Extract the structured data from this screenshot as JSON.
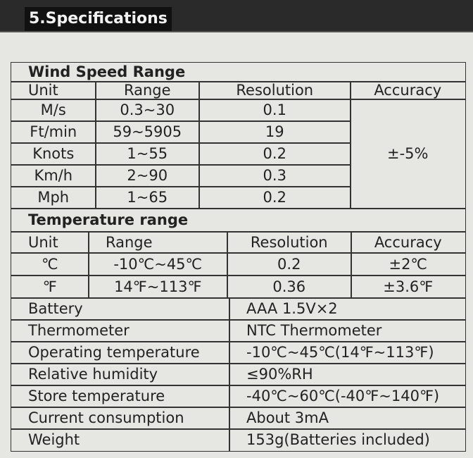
{
  "header": {
    "title": "5.Specifications"
  },
  "wind": {
    "title": "Wind Speed Range",
    "columns": [
      "Unit",
      "Range",
      "Resolution",
      "Accuracy"
    ],
    "rows": [
      [
        "M/s",
        "0.3~30",
        "0.1"
      ],
      [
        "Ft/min",
        "59~5905",
        "19"
      ],
      [
        "Knots",
        "1~55",
        "0.2"
      ],
      [
        "Km/h",
        "2~90",
        "0.3"
      ],
      [
        "Mph",
        "1~65",
        "0.2"
      ]
    ],
    "accuracy": "±-5%"
  },
  "temperature": {
    "title": "Temperature range",
    "columns": [
      "Unit",
      "Range",
      "Resolution",
      "Accuracy"
    ],
    "rows": [
      [
        "℃",
        "-10℃~45℃",
        "0.2",
        "±2℃"
      ],
      [
        "℉",
        "14℉~113℉",
        "0.36",
        "±3.6℉"
      ]
    ]
  },
  "general": {
    "rows": [
      [
        "Battery",
        "AAA  1.5V×2"
      ],
      [
        "Thermometer",
        "NTC Thermometer"
      ],
      [
        "Operating temperature",
        "-10℃~45℃(14℉~113℉)"
      ],
      [
        "Relative humidity",
        "≤90%RH"
      ],
      [
        "Store temperature",
        "-40℃~60℃(-40℉~140℉)"
      ],
      [
        "Current consumption",
        "About 3mA"
      ],
      [
        "Weight",
        "153g(Batteries included)"
      ]
    ]
  }
}
